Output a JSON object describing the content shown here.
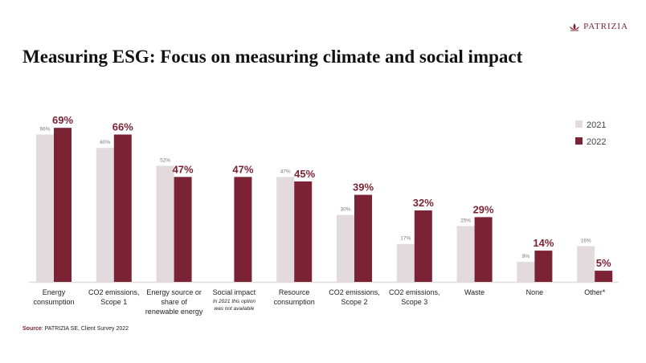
{
  "logo": {
    "text": "PATRIZIA"
  },
  "title": "Measuring ESG: Focus on measuring climate and social impact",
  "source": {
    "label": "Source",
    "text": ": PATRIZIA SE, Client Survey 2022"
  },
  "colors": {
    "2021": "#e2dadc",
    "2022": "#7b2334"
  },
  "chart_data": {
    "type": "bar",
    "categories": [
      [
        "Energy",
        "consumption"
      ],
      [
        "CO2 emissions,",
        "Scope 1"
      ],
      [
        "Energy source or",
        "share of",
        "renewable energy"
      ],
      [
        "Social impact"
      ],
      [
        "Resource",
        "consumption"
      ],
      [
        "CO2 emissions,",
        "Scope 2"
      ],
      [
        "CO2 emissions,",
        "Scope 3"
      ],
      [
        "Waste"
      ],
      [
        "None"
      ],
      [
        "Other*"
      ]
    ],
    "category_note": {
      "index": 3,
      "lines": [
        "In 2021  this option",
        "was not  available"
      ]
    },
    "series": [
      {
        "name": "2021",
        "values": [
          66,
          60,
          52,
          null,
          47,
          30,
          17,
          25,
          9,
          16
        ]
      },
      {
        "name": "2022",
        "values": [
          69,
          66,
          47,
          47,
          45,
          39,
          32,
          29,
          14,
          5
        ]
      }
    ],
    "unit": "%",
    "ylim": [
      0,
      75
    ],
    "grid": false,
    "legend": "right"
  }
}
